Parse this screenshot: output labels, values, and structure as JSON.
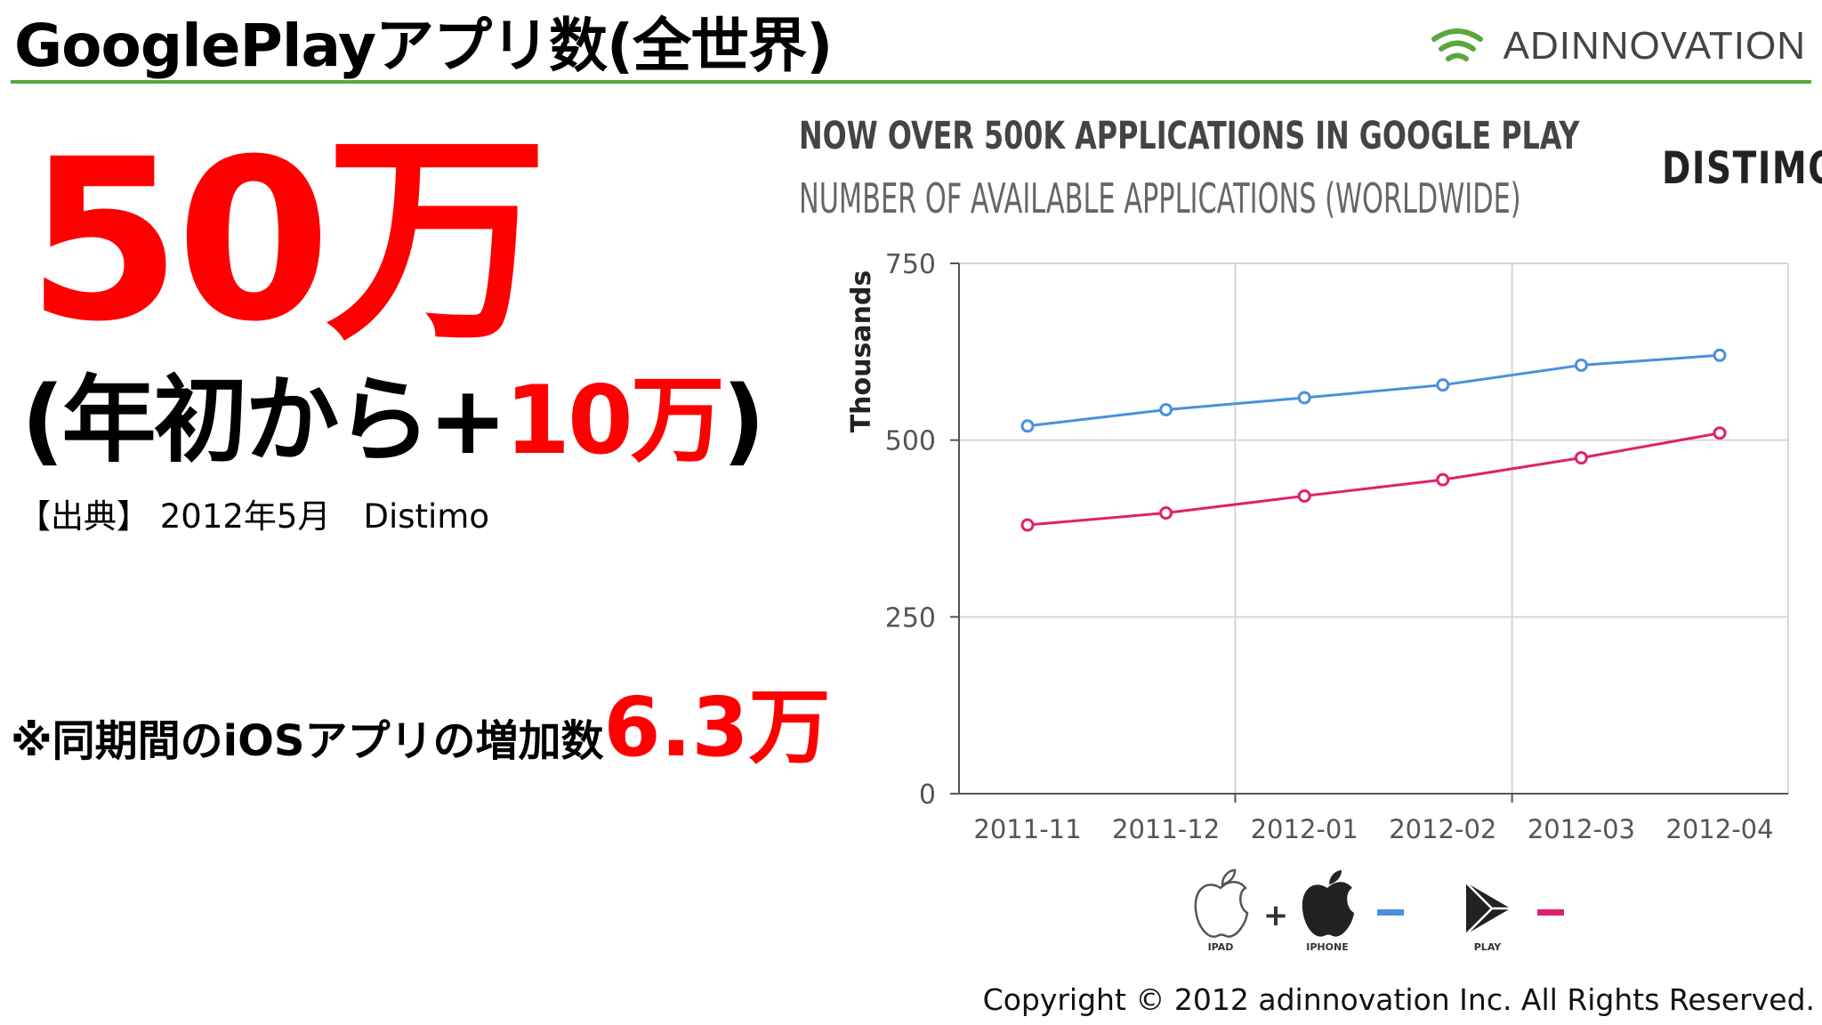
{
  "slide": {
    "title": "GooglePlayアプリ数(全世界)",
    "brand": "ADINNOVATION",
    "big_number": "50万",
    "sub_prefix": "(年初から+",
    "sub_highlight": "10万",
    "sub_suffix": ")",
    "source": "【出典】 2012年5月　Distimo",
    "note_prefix": "※同期間のiOSアプリの増加数",
    "note_highlight": "6.3万",
    "copyright": "Copyright © 2012  adinnovation Inc. All Rights Reserved.",
    "colors": {
      "accent_red": "#ff0000",
      "rule_green": "#5aa73c"
    }
  },
  "chart_data": {
    "type": "line",
    "title": "NOW OVER 500K APPLICATIONS IN GOOGLE PLAY",
    "subtitle": "NUMBER OF AVAILABLE APPLICATIONS (WORLDWIDE)",
    "source_brand": "DISTIMO",
    "ylabel": "Thousands",
    "xlabel": "",
    "categories": [
      "2011-11",
      "2011-12",
      "2012-01",
      "2012-02",
      "2012-03",
      "2012-04"
    ],
    "ylim": [
      0,
      750
    ],
    "yticks": [
      0,
      250,
      500,
      750
    ],
    "grid": true,
    "series": [
      {
        "name": "IPAD + IPHONE",
        "color": "#4a90d9",
        "values": [
          520,
          543,
          560,
          578,
          606,
          620
        ]
      },
      {
        "name": "PLAY",
        "color": "#e0206e",
        "values": [
          380,
          397,
          421,
          444,
          475,
          510
        ]
      }
    ],
    "legend": {
      "placement": "bottom",
      "items": [
        {
          "label": "IPAD",
          "icon": "apple-outline-icon"
        },
        {
          "label": "IPHONE",
          "icon": "apple-solid-icon"
        },
        {
          "label": "PLAY",
          "icon": "google-play-icon"
        }
      ],
      "plus": "+"
    }
  }
}
